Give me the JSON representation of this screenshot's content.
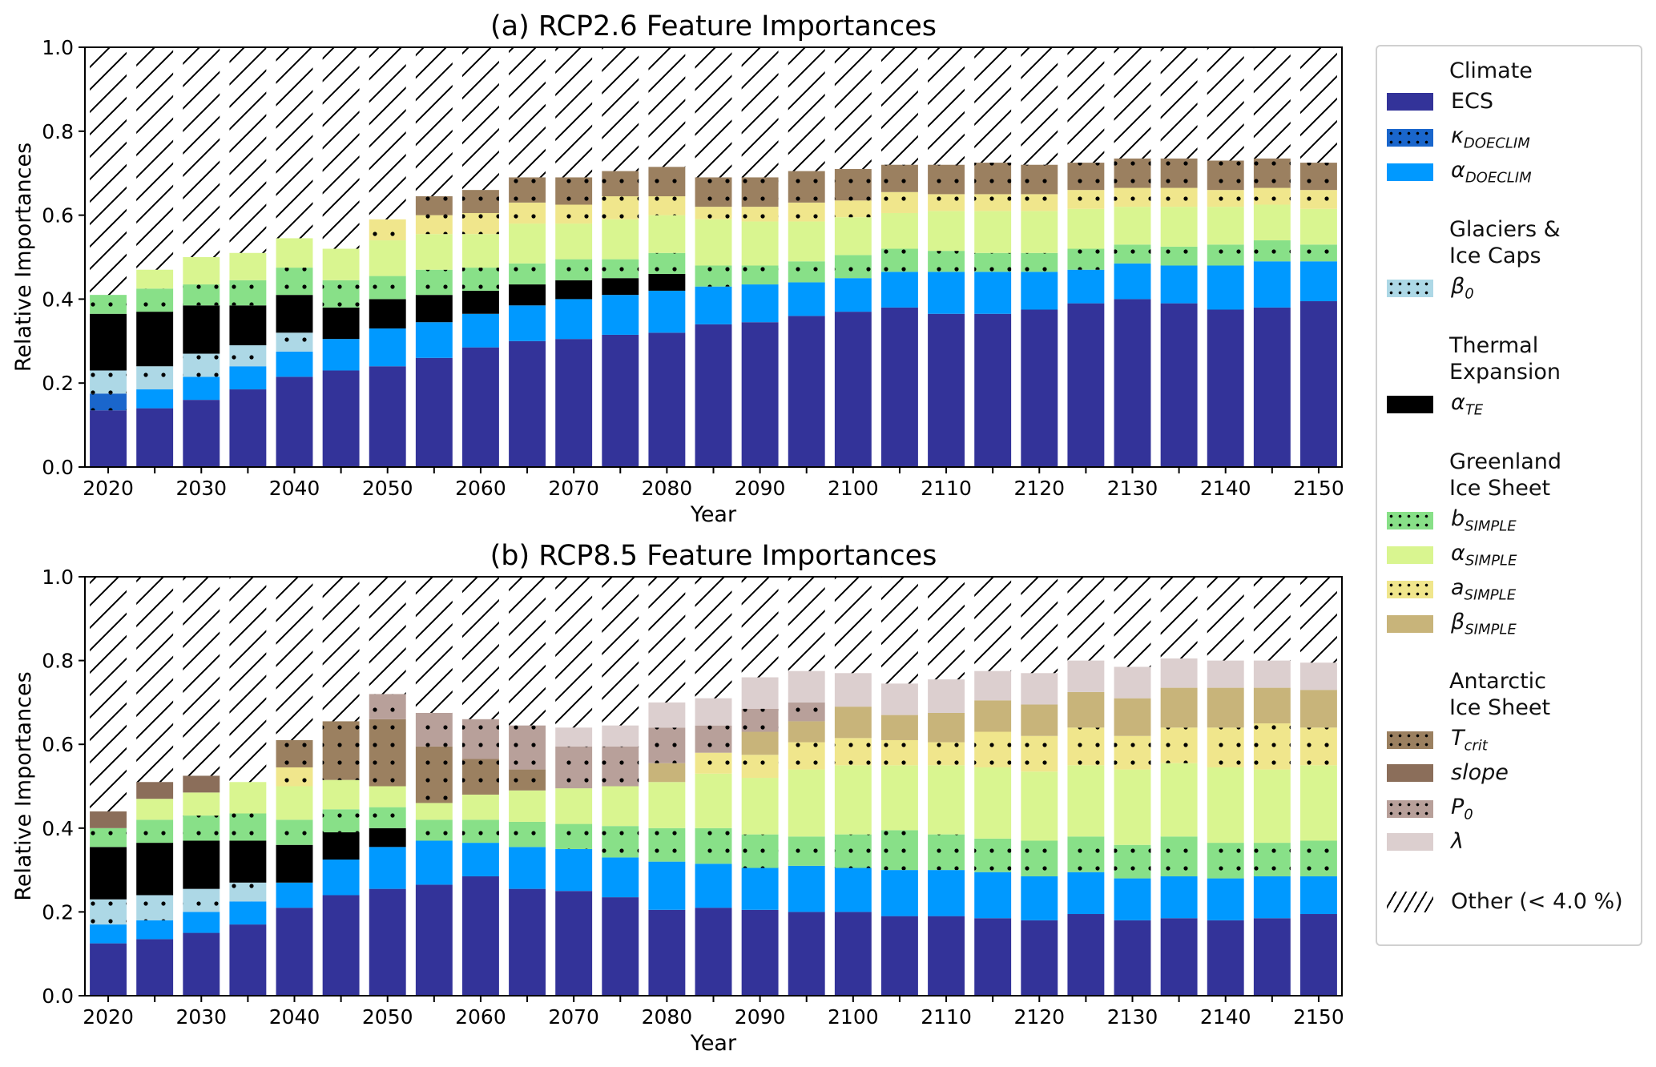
{
  "chart_data": [
    {
      "type": "bar",
      "stacked": true,
      "title": "(a) RCP2.6 Feature Importances",
      "xlabel": "Year",
      "ylabel": "Relative Importances",
      "ylim": [
        0,
        1.0
      ],
      "yticks": [
        "0.0",
        "0.2",
        "0.4",
        "0.6",
        "0.8",
        "1.0"
      ],
      "xtick_labels": [
        "2020",
        "2030",
        "2040",
        "2050",
        "2060",
        "2070",
        "2080",
        "2090",
        "2100",
        "2110",
        "2120",
        "2130",
        "2140",
        "2150"
      ],
      "categories": [
        2020,
        2025,
        2030,
        2035,
        2040,
        2045,
        2050,
        2055,
        2060,
        2065,
        2070,
        2075,
        2080,
        2085,
        2090,
        2095,
        2100,
        2105,
        2110,
        2115,
        2120,
        2125,
        2130,
        2135,
        2140,
        2145,
        2150
      ],
      "series": [
        {
          "key": "ecs",
          "values": [
            0.135,
            0.14,
            0.16,
            0.185,
            0.215,
            0.23,
            0.24,
            0.26,
            0.285,
            0.3,
            0.305,
            0.315,
            0.32,
            0.34,
            0.345,
            0.36,
            0.37,
            0.38,
            0.365,
            0.365,
            0.375,
            0.39,
            0.4,
            0.39,
            0.375,
            0.38,
            0.395
          ]
        },
        {
          "key": "kappa",
          "values": [
            0.04,
            0,
            0,
            0,
            0,
            0,
            0,
            0,
            0,
            0,
            0,
            0,
            0,
            0,
            0,
            0,
            0,
            0,
            0,
            0,
            0,
            0,
            0,
            0,
            0,
            0,
            0
          ]
        },
        {
          "key": "alpha_doeclim",
          "values": [
            0,
            0.045,
            0.055,
            0.055,
            0.06,
            0.075,
            0.09,
            0.085,
            0.08,
            0.085,
            0.095,
            0.095,
            0.1,
            0.09,
            0.09,
            0.08,
            0.08,
            0.085,
            0.1,
            0.1,
            0.09,
            0.08,
            0.085,
            0.09,
            0.105,
            0.11,
            0.095
          ]
        },
        {
          "key": "beta0",
          "values": [
            0.055,
            0.055,
            0.055,
            0.05,
            0.045,
            0,
            0,
            0,
            0,
            0,
            0,
            0,
            0,
            0,
            0,
            0,
            0,
            0,
            0,
            0,
            0,
            0,
            0,
            0,
            0,
            0,
            0
          ]
        },
        {
          "key": "alpha_te",
          "values": [
            0.135,
            0.13,
            0.115,
            0.095,
            0.09,
            0.075,
            0.07,
            0.065,
            0.055,
            0.05,
            0.045,
            0.04,
            0.04,
            0,
            0,
            0,
            0,
            0,
            0,
            0,
            0,
            0,
            0,
            0,
            0,
            0,
            0
          ]
        },
        {
          "key": "b_simple",
          "values": [
            0.045,
            0.055,
            0.05,
            0.06,
            0.065,
            0.065,
            0.055,
            0.06,
            0.055,
            0.05,
            0.05,
            0.045,
            0.05,
            0.05,
            0.045,
            0.05,
            0.055,
            0.055,
            0.05,
            0.045,
            0.045,
            0.05,
            0.045,
            0.045,
            0.05,
            0.05,
            0.04
          ]
        },
        {
          "key": "alpha_simple",
          "values": [
            0,
            0.045,
            0.065,
            0.065,
            0.07,
            0.075,
            0.085,
            0.085,
            0.08,
            0.095,
            0.085,
            0.095,
            0.09,
            0.11,
            0.105,
            0.095,
            0.09,
            0.085,
            0.095,
            0.1,
            0.1,
            0.095,
            0.09,
            0.095,
            0.09,
            0.085,
            0.085
          ]
        },
        {
          "key": "a_simple",
          "values": [
            0,
            0,
            0,
            0,
            0,
            0,
            0.05,
            0.045,
            0.05,
            0.05,
            0.045,
            0.055,
            0.045,
            0.03,
            0.035,
            0.045,
            0.04,
            0.05,
            0.04,
            0.04,
            0.04,
            0.045,
            0.045,
            0.045,
            0.04,
            0.04,
            0.045
          ]
        },
        {
          "key": "beta_simple",
          "values": [
            0,
            0,
            0,
            0,
            0,
            0,
            0,
            0,
            0,
            0,
            0,
            0,
            0,
            0,
            0,
            0,
            0,
            0,
            0,
            0,
            0,
            0,
            0,
            0,
            0,
            0,
            0
          ]
        },
        {
          "key": "t_crit",
          "values": [
            0,
            0,
            0,
            0,
            0,
            0,
            0,
            0.045,
            0.055,
            0.06,
            0.065,
            0.06,
            0.07,
            0.07,
            0.07,
            0.075,
            0.075,
            0.065,
            0.07,
            0.075,
            0.07,
            0.065,
            0.07,
            0.07,
            0.07,
            0.07,
            0.065
          ]
        },
        {
          "key": "slope",
          "values": [
            0,
            0,
            0,
            0,
            0,
            0,
            0,
            0,
            0,
            0,
            0,
            0,
            0,
            0,
            0,
            0,
            0,
            0,
            0,
            0,
            0,
            0,
            0,
            0,
            0,
            0,
            0
          ]
        },
        {
          "key": "p0",
          "values": [
            0,
            0,
            0,
            0,
            0,
            0,
            0,
            0,
            0,
            0,
            0,
            0,
            0,
            0,
            0,
            0,
            0,
            0,
            0,
            0,
            0,
            0,
            0,
            0,
            0,
            0,
            0
          ]
        },
        {
          "key": "lambda",
          "values": [
            0,
            0,
            0,
            0,
            0,
            0,
            0,
            0,
            0,
            0,
            0,
            0,
            0,
            0,
            0,
            0,
            0,
            0,
            0,
            0,
            0,
            0,
            0,
            0,
            0,
            0,
            0
          ]
        }
      ],
      "other_fills_to": 1.0
    },
    {
      "type": "bar",
      "stacked": true,
      "title": "(b) RCP8.5 Feature Importances",
      "xlabel": "Year",
      "ylabel": "Relative Importances",
      "ylim": [
        0,
        1.0
      ],
      "yticks": [
        "0.0",
        "0.2",
        "0.4",
        "0.6",
        "0.8",
        "1.0"
      ],
      "xtick_labels": [
        "2020",
        "2030",
        "2040",
        "2050",
        "2060",
        "2070",
        "2080",
        "2090",
        "2100",
        "2110",
        "2120",
        "2130",
        "2140",
        "2150"
      ],
      "categories": [
        2020,
        2025,
        2030,
        2035,
        2040,
        2045,
        2050,
        2055,
        2060,
        2065,
        2070,
        2075,
        2080,
        2085,
        2090,
        2095,
        2100,
        2105,
        2110,
        2115,
        2120,
        2125,
        2130,
        2135,
        2140,
        2145,
        2150
      ],
      "series": [
        {
          "key": "ecs",
          "values": [
            0.125,
            0.135,
            0.15,
            0.17,
            0.21,
            0.24,
            0.255,
            0.265,
            0.285,
            0.255,
            0.25,
            0.235,
            0.205,
            0.21,
            0.205,
            0.2,
            0.2,
            0.19,
            0.19,
            0.185,
            0.18,
            0.195,
            0.18,
            0.185,
            0.18,
            0.185,
            0.195
          ]
        },
        {
          "key": "kappa",
          "values": [
            0,
            0,
            0,
            0,
            0,
            0,
            0,
            0,
            0,
            0,
            0,
            0,
            0,
            0,
            0,
            0,
            0,
            0,
            0,
            0,
            0,
            0,
            0,
            0,
            0,
            0,
            0
          ]
        },
        {
          "key": "alpha_doeclim",
          "values": [
            0.045,
            0.045,
            0.05,
            0.055,
            0.06,
            0.085,
            0.1,
            0.105,
            0.08,
            0.1,
            0.1,
            0.095,
            0.115,
            0.105,
            0.1,
            0.11,
            0.105,
            0.11,
            0.11,
            0.11,
            0.105,
            0.1,
            0.1,
            0.1,
            0.1,
            0.1,
            0.09
          ]
        },
        {
          "key": "beta0",
          "values": [
            0.06,
            0.06,
            0.055,
            0.045,
            0,
            0,
            0,
            0,
            0,
            0,
            0,
            0,
            0,
            0,
            0,
            0,
            0,
            0,
            0,
            0,
            0,
            0,
            0,
            0,
            0,
            0,
            0
          ]
        },
        {
          "key": "alpha_te",
          "values": [
            0.125,
            0.125,
            0.115,
            0.1,
            0.09,
            0.065,
            0.045,
            0,
            0,
            0,
            0,
            0,
            0,
            0,
            0,
            0,
            0,
            0,
            0,
            0,
            0,
            0,
            0,
            0,
            0,
            0,
            0
          ]
        },
        {
          "key": "b_simple",
          "values": [
            0.045,
            0.055,
            0.06,
            0.065,
            0.06,
            0.055,
            0.05,
            0.05,
            0.055,
            0.06,
            0.06,
            0.075,
            0.08,
            0.085,
            0.08,
            0.07,
            0.08,
            0.095,
            0.085,
            0.08,
            0.085,
            0.085,
            0.08,
            0.095,
            0.085,
            0.08,
            0.085
          ]
        },
        {
          "key": "alpha_simple",
          "values": [
            0,
            0.05,
            0.055,
            0.075,
            0.08,
            0.07,
            0.05,
            0.04,
            0.06,
            0.075,
            0.085,
            0.095,
            0.11,
            0.13,
            0.135,
            0.16,
            0.165,
            0.155,
            0.165,
            0.17,
            0.165,
            0.17,
            0.18,
            0.175,
            0.18,
            0.175,
            0.18
          ]
        },
        {
          "key": "a_simple",
          "values": [
            0,
            0,
            0,
            0,
            0.045,
            0,
            0,
            0,
            0,
            0,
            0,
            0,
            0,
            0.05,
            0.055,
            0.065,
            0.065,
            0.06,
            0.055,
            0.085,
            0.085,
            0.09,
            0.08,
            0.085,
            0.095,
            0.11,
            0.09
          ]
        },
        {
          "key": "beta_simple",
          "values": [
            0,
            0,
            0,
            0,
            0,
            0,
            0,
            0,
            0,
            0,
            0,
            0,
            0.045,
            0,
            0.055,
            0.05,
            0.075,
            0.06,
            0.07,
            0.075,
            0.075,
            0.085,
            0.09,
            0.095,
            0.095,
            0.085,
            0.09
          ]
        },
        {
          "key": "t_crit",
          "values": [
            0,
            0,
            0,
            0,
            0.065,
            0.14,
            0.16,
            0.135,
            0.085,
            0.05,
            0,
            0,
            0,
            0,
            0,
            0,
            0,
            0,
            0,
            0,
            0,
            0,
            0,
            0,
            0,
            0,
            0
          ]
        },
        {
          "key": "slope",
          "values": [
            0.04,
            0.04,
            0.04,
            0,
            0,
            0,
            0,
            0,
            0,
            0,
            0,
            0,
            0,
            0,
            0,
            0,
            0,
            0,
            0,
            0,
            0,
            0,
            0,
            0,
            0,
            0,
            0
          ]
        },
        {
          "key": "p0",
          "values": [
            0,
            0,
            0,
            0,
            0,
            0,
            0.06,
            0.08,
            0.095,
            0.105,
            0.1,
            0.095,
            0.085,
            0.065,
            0.055,
            0.045,
            0,
            0,
            0,
            0,
            0,
            0,
            0,
            0,
            0,
            0,
            0
          ]
        },
        {
          "key": "lambda",
          "values": [
            0,
            0,
            0,
            0,
            0,
            0,
            0,
            0,
            0,
            0,
            0.045,
            0.05,
            0.06,
            0.065,
            0.075,
            0.075,
            0.08,
            0.075,
            0.08,
            0.07,
            0.075,
            0.075,
            0.075,
            0.07,
            0.065,
            0.065,
            0.065
          ]
        }
      ],
      "other_fills_to": 1.0
    }
  ],
  "series_styles": {
    "ecs": {
      "color": "#333399",
      "dotted": false
    },
    "kappa": {
      "color": "#1a66cc",
      "dotted": true
    },
    "alpha_doeclim": {
      "color": "#0099ff",
      "dotted": false
    },
    "beta0": {
      "color": "#add8e6",
      "dotted": true
    },
    "alpha_te": {
      "color": "#000000",
      "dotted": false
    },
    "b_simple": {
      "color": "#88e088",
      "dotted": true
    },
    "alpha_simple": {
      "color": "#d9f590",
      "dotted": false
    },
    "a_simple": {
      "color": "#f0e68c",
      "dotted": true
    },
    "beta_simple": {
      "color": "#c8b47a",
      "dotted": false
    },
    "t_crit": {
      "color": "#9b8060",
      "dotted": true
    },
    "slope": {
      "color": "#8b6e5a",
      "dotted": false
    },
    "p0": {
      "color": "#b8a09a",
      "dotted": true
    },
    "lambda": {
      "color": "#dccfcf",
      "dotted": false
    }
  },
  "legend": {
    "groups": [
      {
        "heading": "Climate",
        "items": [
          {
            "key": "ecs",
            "label": "ECS",
            "sub": ""
          },
          {
            "key": "kappa",
            "label": "κ",
            "sub": "DOECLIM"
          },
          {
            "key": "alpha_doeclim",
            "label": "α",
            "sub": "DOECLIM"
          }
        ]
      },
      {
        "heading": "Glaciers & Ice Caps",
        "items": [
          {
            "key": "beta0",
            "label": "β",
            "sub": "0"
          }
        ]
      },
      {
        "heading": "Thermal Expansion",
        "items": [
          {
            "key": "alpha_te",
            "label": "α",
            "sub": "TE"
          }
        ]
      },
      {
        "heading": "Greenland Ice Sheet",
        "items": [
          {
            "key": "b_simple",
            "label": "b",
            "sub": "SIMPLE"
          },
          {
            "key": "alpha_simple",
            "label": "α",
            "sub": "SIMPLE"
          },
          {
            "key": "a_simple",
            "label": "a",
            "sub": "SIMPLE"
          },
          {
            "key": "beta_simple",
            "label": "β",
            "sub": "SIMPLE"
          }
        ]
      },
      {
        "heading": "Antarctic Ice Sheet",
        "items": [
          {
            "key": "t_crit",
            "label": "T",
            "sub": "crit"
          },
          {
            "key": "slope",
            "label": "slope",
            "sub": ""
          },
          {
            "key": "p0",
            "label": "P",
            "sub": "0"
          },
          {
            "key": "lambda",
            "label": "λ",
            "sub": ""
          }
        ]
      }
    ],
    "other_label": "Other (< 4.0 %)"
  }
}
